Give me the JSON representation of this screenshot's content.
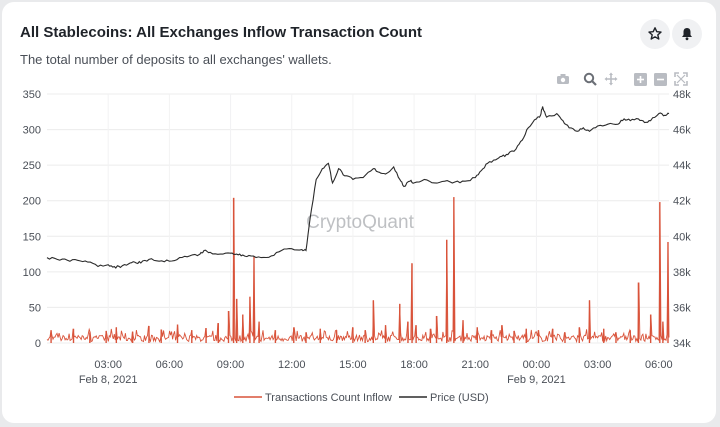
{
  "header": {
    "title": "All Stablecoins: All Exchanges Inflow Transaction Count",
    "subtitle": "The total number of deposits to all exchanges' wallets."
  },
  "icons": {
    "favorite": "star-icon",
    "notify": "bell-icon",
    "toolbar": [
      "camera-icon",
      "zoom-icon",
      "pan-icon",
      "zoom-in-icon",
      "zoom-out-icon",
      "autoscale-icon"
    ]
  },
  "watermark": "CryptoQuant",
  "colors": {
    "inflow": "#d9533a",
    "price": "#2b2b2b",
    "grid": "#ececec"
  },
  "chart_data": {
    "type": "line",
    "title": "All Stablecoins: All Exchanges Inflow Transaction Count",
    "x_ticks": [
      {
        "hour": 3,
        "label": "03:00"
      },
      {
        "hour": 6,
        "label": "06:00"
      },
      {
        "hour": 9,
        "label": "09:00"
      },
      {
        "hour": 12,
        "label": "12:00"
      },
      {
        "hour": 15,
        "label": "15:00"
      },
      {
        "hour": 18,
        "label": "18:00"
      },
      {
        "hour": 21,
        "label": "21:00"
      },
      {
        "hour": 24,
        "label": "00:00"
      },
      {
        "hour": 27,
        "label": "03:00"
      },
      {
        "hour": 30,
        "label": "06:00"
      }
    ],
    "date_labels": [
      {
        "hour": 3,
        "label": "Feb 8, 2021"
      },
      {
        "hour": 24,
        "label": "Feb 9, 2021"
      }
    ],
    "x_range_hours": [
      0,
      30.5
    ],
    "y_left": {
      "range": [
        0,
        350
      ],
      "ticks": [
        0,
        50,
        100,
        150,
        200,
        250,
        300,
        350
      ]
    },
    "y_right": {
      "range": [
        34000,
        48000
      ],
      "ticks": [
        34000,
        36000,
        38000,
        40000,
        42000,
        44000,
        46000,
        48000
      ],
      "tick_labels": [
        "34k",
        "36k",
        "38k",
        "40k",
        "42k",
        "44k",
        "46k",
        "48k"
      ]
    },
    "legend": [
      "Transactions Count Inflow",
      "Price (USD)"
    ],
    "legend_position": "bottom-center",
    "series": [
      {
        "name": "Price (USD)",
        "axis": "right",
        "points": [
          [
            0,
            38800
          ],
          [
            0.5,
            38700
          ],
          [
            1,
            38650
          ],
          [
            1.5,
            38650
          ],
          [
            2,
            38550
          ],
          [
            2.5,
            38300
          ],
          [
            3,
            38400
          ],
          [
            3.3,
            38300
          ],
          [
            3.6,
            38250
          ],
          [
            4,
            38450
          ],
          [
            4.3,
            38550
          ],
          [
            4.6,
            38500
          ],
          [
            5,
            38700
          ],
          [
            5.5,
            38600
          ],
          [
            6,
            38600
          ],
          [
            6.5,
            38800
          ],
          [
            7,
            38900
          ],
          [
            7.5,
            39000
          ],
          [
            7.7,
            39200
          ],
          [
            8,
            39100
          ],
          [
            8.5,
            39000
          ],
          [
            9,
            39050
          ],
          [
            9.3,
            39000
          ],
          [
            9.6,
            38950
          ],
          [
            10,
            38900
          ],
          [
            10.5,
            38800
          ],
          [
            11,
            38900
          ],
          [
            11.5,
            39200
          ],
          [
            12,
            39300
          ],
          [
            12.5,
            39250
          ],
          [
            12.7,
            39200
          ],
          [
            12.9,
            41000
          ],
          [
            13.2,
            43200
          ],
          [
            13.5,
            43800
          ],
          [
            13.8,
            44100
          ],
          [
            14,
            43000
          ],
          [
            14.3,
            43800
          ],
          [
            14.6,
            43400
          ],
          [
            15,
            43200
          ],
          [
            15.5,
            43300
          ],
          [
            16,
            43800
          ],
          [
            16.3,
            43600
          ],
          [
            16.6,
            43500
          ],
          [
            17,
            43900
          ],
          [
            17.3,
            43200
          ],
          [
            17.5,
            42800
          ],
          [
            17.8,
            43100
          ],
          [
            18,
            43000
          ],
          [
            18.5,
            43200
          ],
          [
            19,
            43000
          ],
          [
            19.5,
            43100
          ],
          [
            20,
            43050
          ],
          [
            20.5,
            43100
          ],
          [
            21,
            43300
          ],
          [
            21.3,
            43700
          ],
          [
            21.6,
            44100
          ],
          [
            22,
            44300
          ],
          [
            22.3,
            44500
          ],
          [
            22.6,
            44600
          ],
          [
            23,
            44900
          ],
          [
            23.3,
            45400
          ],
          [
            23.6,
            46100
          ],
          [
            24,
            46600
          ],
          [
            24.2,
            46800
          ],
          [
            24.3,
            47300
          ],
          [
            24.5,
            46700
          ],
          [
            25,
            46900
          ],
          [
            25.3,
            46500
          ],
          [
            25.6,
            46100
          ],
          [
            26,
            45900
          ],
          [
            26.3,
            46100
          ],
          [
            26.6,
            45900
          ],
          [
            27,
            46200
          ],
          [
            27.5,
            46300
          ],
          [
            28,
            46300
          ],
          [
            28.3,
            46600
          ],
          [
            28.6,
            46500
          ],
          [
            29,
            46600
          ],
          [
            29.3,
            46400
          ],
          [
            29.6,
            46500
          ],
          [
            30,
            46900
          ],
          [
            30.3,
            46800
          ],
          [
            30.5,
            46900
          ]
        ]
      },
      {
        "name": "Transactions Count Inflow",
        "axis": "left",
        "spikes": [
          [
            0.2,
            18
          ],
          [
            1.3,
            20
          ],
          [
            2.1,
            15
          ],
          [
            2.9,
            17
          ],
          [
            3.4,
            22
          ],
          [
            4.2,
            16
          ],
          [
            5.0,
            24
          ],
          [
            5.6,
            19
          ],
          [
            6.4,
            26
          ],
          [
            7.1,
            18
          ],
          [
            7.8,
            21
          ],
          [
            8.4,
            28
          ],
          [
            8.9,
            45
          ],
          [
            9.15,
            204
          ],
          [
            9.3,
            62
          ],
          [
            9.6,
            40
          ],
          [
            9.95,
            65
          ],
          [
            10.15,
            122
          ],
          [
            10.4,
            30
          ],
          [
            11.2,
            18
          ],
          [
            12.1,
            22
          ],
          [
            12.7,
            15
          ],
          [
            13.4,
            20
          ],
          [
            14.2,
            18
          ],
          [
            15.0,
            22
          ],
          [
            15.6,
            18
          ],
          [
            16.0,
            60
          ],
          [
            16.6,
            25
          ],
          [
            17.3,
            55
          ],
          [
            17.7,
            30
          ],
          [
            17.9,
            112
          ],
          [
            18.1,
            25
          ],
          [
            18.8,
            20
          ],
          [
            19.1,
            38
          ],
          [
            19.6,
            145
          ],
          [
            19.95,
            205
          ],
          [
            20.4,
            32
          ],
          [
            21.1,
            22
          ],
          [
            21.8,
            18
          ],
          [
            22.3,
            25
          ],
          [
            22.9,
            17
          ],
          [
            23.5,
            20
          ],
          [
            24.1,
            18
          ],
          [
            24.8,
            20
          ],
          [
            25.4,
            15
          ],
          [
            26.1,
            22
          ],
          [
            26.6,
            60
          ],
          [
            27.3,
            20
          ],
          [
            27.9,
            15
          ],
          [
            28.6,
            18
          ],
          [
            29.0,
            85
          ],
          [
            29.6,
            40
          ],
          [
            30.05,
            198
          ],
          [
            30.2,
            30
          ],
          [
            30.45,
            142
          ]
        ]
      }
    ]
  }
}
